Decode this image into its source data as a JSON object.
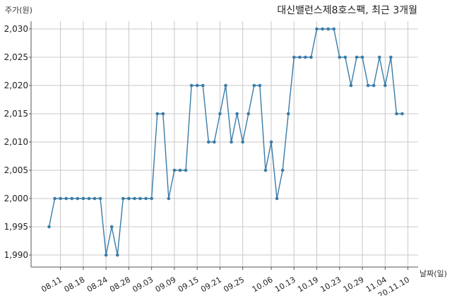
{
  "chart_data": {
    "type": "line",
    "title": "대신밸런스제8호스팩, 최근 3개월",
    "ylabel": "주가(원)",
    "xlabel": "날짜(일)",
    "ylim": [
      1988,
      2032
    ],
    "yticks": [
      1990,
      1995,
      2000,
      2005,
      2010,
      2015,
      2020,
      2025,
      2030
    ],
    "ytick_labels": [
      "1,990",
      "1,995",
      "2,000",
      "2,005",
      "2,010",
      "2,015",
      "2,020",
      "2,025",
      "2,030"
    ],
    "xtick_labels": [
      "08.11",
      "08.18",
      "08.24",
      "08.28",
      "09.03",
      "09.09",
      "09.15",
      "09.21",
      "09.25",
      "10.06",
      "10.13",
      "10.19",
      "10.23",
      "10.29",
      "11.04",
      "20.11.10"
    ],
    "xtick_index": [
      2,
      6,
      10,
      14,
      18,
      22,
      26,
      30,
      34,
      39,
      43,
      47,
      51,
      55,
      59,
      63
    ],
    "grid": true,
    "line_color": "#3a7ca8",
    "series": [
      {
        "values": [
          1995,
          2000,
          2000,
          2000,
          2000,
          2000,
          2000,
          2000,
          2000,
          2000,
          1990,
          1995,
          1990,
          2000,
          2000,
          2000,
          2000,
          2000,
          2000,
          2015,
          2015,
          2000,
          2005,
          2005,
          2005,
          2020,
          2020,
          2020,
          2010,
          2010,
          2015,
          2020,
          2010,
          2015,
          2010,
          2015,
          2020,
          2020,
          2005,
          2010,
          2000,
          2005,
          2015,
          2025,
          2025,
          2025,
          2025,
          2030,
          2030,
          2030,
          2030,
          2025,
          2025,
          2020,
          2025,
          2025,
          2020,
          2020,
          2025,
          2020,
          2025,
          2015,
          2015
        ]
      }
    ]
  }
}
